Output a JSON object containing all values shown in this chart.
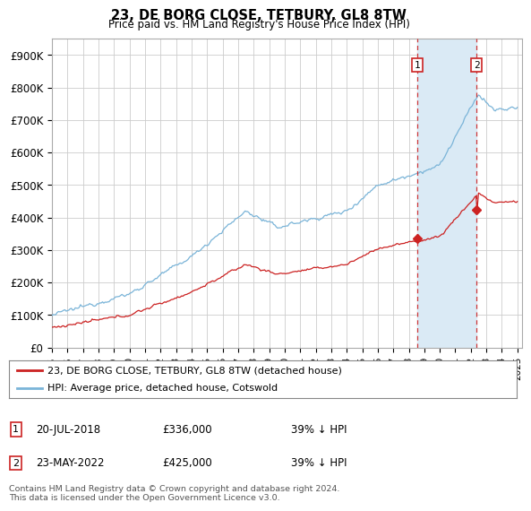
{
  "title": "23, DE BORG CLOSE, TETBURY, GL8 8TW",
  "subtitle": "Price paid vs. HM Land Registry's House Price Index (HPI)",
  "ylim": [
    0,
    950000
  ],
  "yticks": [
    0,
    100000,
    200000,
    300000,
    400000,
    500000,
    600000,
    700000,
    800000,
    900000
  ],
  "ytick_labels": [
    "£0",
    "£100K",
    "£200K",
    "£300K",
    "£400K",
    "£500K",
    "£600K",
    "£700K",
    "£800K",
    "£900K"
  ],
  "hpi_color": "#7ab4d8",
  "hpi_fill_color": "#daeaf5",
  "price_color": "#cc2222",
  "sale1_year": 2018.54,
  "sale2_year": 2022.37,
  "sale1_price": 336000,
  "sale2_price": 425000,
  "legend_line1": "23, DE BORG CLOSE, TETBURY, GL8 8TW (detached house)",
  "legend_line2": "HPI: Average price, detached house, Cotswold",
  "table_row1": [
    "1",
    "20-JUL-2018",
    "£336,000",
    "39% ↓ HPI"
  ],
  "table_row2": [
    "2",
    "23-MAY-2022",
    "£425,000",
    "39% ↓ HPI"
  ],
  "footnote": "Contains HM Land Registry data © Crown copyright and database right 2024.\nThis data is licensed under the Open Government Licence v3.0.",
  "background_color": "#ffffff",
  "grid_color": "#cccccc"
}
